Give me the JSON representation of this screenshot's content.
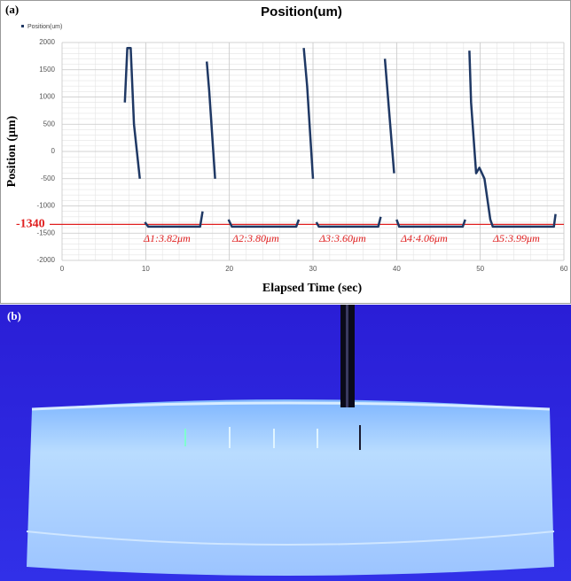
{
  "chart_data": {
    "type": "line",
    "panel_label": "(a)",
    "title": "Position(um)",
    "x_label": "Elapsed Time (sec)",
    "y_label": "Position (μm)",
    "series": [
      {
        "name": "Position(um)",
        "color": "#1f3864",
        "x": [
          7.5,
          7.8,
          8.2,
          8.6,
          9.3,
          9.6,
          9.9,
          10.3,
          16.5,
          16.8,
          17.1,
          17.3,
          17.6,
          18.3,
          19.0,
          19.9,
          20.3,
          28.0,
          28.3,
          28.6,
          28.9,
          29.3,
          30.0,
          30.2,
          30.4,
          30.7,
          37.8,
          38.1,
          38.4,
          38.6,
          39.7,
          39.8,
          40.0,
          40.3,
          47.9,
          48.2,
          48.5,
          48.7,
          48.9,
          49.5,
          49.9,
          50.5,
          51.2,
          51.5,
          58.8,
          59.0
        ],
        "values": [
          900,
          1900,
          1900,
          500,
          -500,
          null,
          -1300,
          -1380,
          -1380,
          -1100,
          null,
          1650,
          1100,
          -500,
          null,
          -1250,
          -1380,
          -1380,
          -1250,
          null,
          1900,
          1200,
          -500,
          null,
          -1300,
          -1380,
          -1380,
          -1200,
          null,
          1700,
          -400,
          null,
          -1250,
          -1380,
          -1380,
          -1250,
          null,
          1850,
          900,
          -400,
          -300,
          -500,
          -1250,
          -1380,
          -1380,
          -1150
        ]
      }
    ],
    "reference_line": -1340,
    "reference_color": "#e02020",
    "annotations": [
      "Δ1:3.82μm",
      "Δ2:3.80μm",
      "Δ3:3.60μm",
      "Δ4:4.06μm",
      "Δ5:3.99μm"
    ],
    "xlim": [
      0,
      60
    ],
    "xticks": [
      0,
      10,
      20,
      30,
      40,
      50,
      60
    ],
    "ylim": [
      -2000,
      2000
    ],
    "yticks": [
      -2000,
      -1500,
      -1000,
      -500,
      0,
      500,
      1000,
      1500,
      2000
    ],
    "grid": true,
    "legend": "top-left"
  },
  "photo": {
    "panel_label": "(b)"
  }
}
